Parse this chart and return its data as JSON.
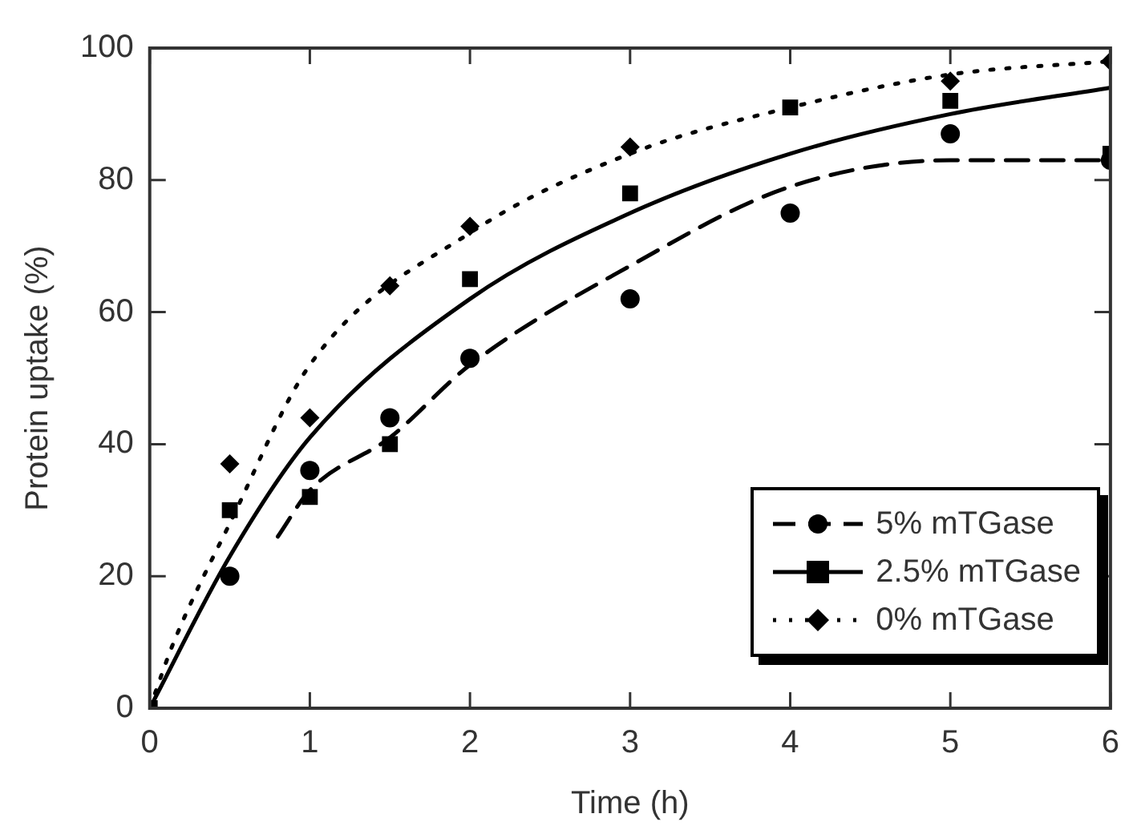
{
  "chart_data": {
    "type": "scatter",
    "xlabel": "Time (h)",
    "ylabel": "Protein uptake (%)",
    "xlim": [
      0,
      6
    ],
    "xticks": [
      0,
      1,
      2,
      3,
      4,
      5,
      6
    ],
    "ylim": [
      0,
      100
    ],
    "yticks": [
      0,
      20,
      40,
      60,
      80,
      100
    ],
    "grid": false,
    "legend": "bottom right",
    "x": [
      0,
      0.5,
      1,
      1.5,
      2,
      3,
      4,
      5,
      6
    ],
    "series": [
      {
        "name": "5% mTGase",
        "color": "#000000",
        "marker": "circle",
        "line_style": "dashed",
        "values": [
          null,
          20,
          36,
          44,
          53,
          62,
          75,
          87,
          83
        ]
      },
      {
        "name": "2.5% mTGase",
        "color": "#000000",
        "marker": "square",
        "line_style": "solid",
        "values": [
          0,
          30,
          32,
          40,
          65,
          78,
          91,
          92,
          84
        ]
      },
      {
        "name": "0% mTGase",
        "color": "#000000",
        "marker": "diamond",
        "line_style": "dotted",
        "values": [
          null,
          37,
          44,
          64,
          73,
          85,
          null,
          95,
          98
        ]
      },
      {
        "type": "line",
        "color": "#000000",
        "marker": "none",
        "line_style": "dashed",
        "x": [
          0.8,
          1,
          1.5,
          2,
          3,
          4,
          5,
          6
        ],
        "values": [
          26,
          33,
          41,
          52,
          67,
          79,
          83,
          83
        ]
      },
      {
        "type": "line",
        "color": "#000000",
        "marker": "none",
        "line_style": "solid",
        "x": [
          0,
          0.5,
          1,
          2,
          3,
          4,
          5,
          6
        ],
        "values": [
          0,
          23,
          41,
          62,
          75,
          84,
          90,
          94
        ]
      },
      {
        "type": "line",
        "color": "#000000",
        "marker": "none",
        "line_style": "dotted",
        "x": [
          0,
          0.15,
          0.5,
          1,
          2,
          3,
          4,
          5,
          6
        ],
        "values": [
          0,
          10,
          28,
          52,
          72,
          84,
          91,
          96,
          98
        ]
      }
    ]
  }
}
